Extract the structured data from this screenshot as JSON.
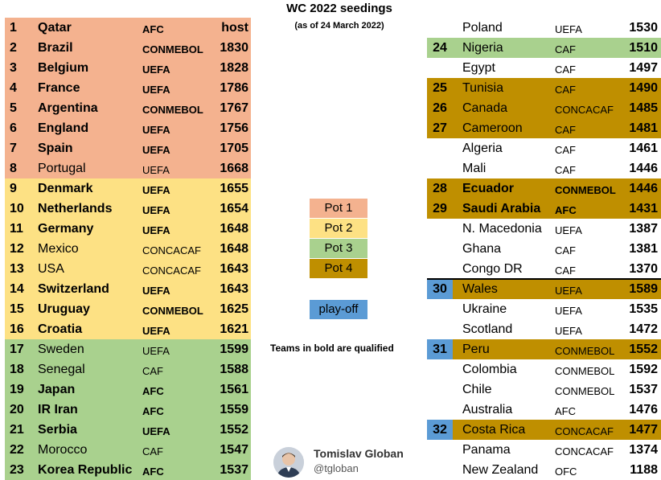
{
  "title": "WC 2022 seedings",
  "subtitle": "(as of 24 March 2022)",
  "colors": {
    "pot1": "#f4b28f",
    "pot2": "#fde184",
    "pot3": "#a9d18e",
    "pot4": "#bf8f00",
    "playoff": "#5b9bd5"
  },
  "left_table": [
    {
      "rank": "1",
      "team": "Qatar",
      "conf": "AFC",
      "elo": "host",
      "qualified": true,
      "pot": "pot1"
    },
    {
      "rank": "2",
      "team": "Brazil",
      "conf": "CONMEBOL",
      "elo": "1830",
      "qualified": true,
      "pot": "pot1"
    },
    {
      "rank": "3",
      "team": "Belgium",
      "conf": "UEFA",
      "elo": "1828",
      "qualified": true,
      "pot": "pot1"
    },
    {
      "rank": "4",
      "team": "France",
      "conf": "UEFA",
      "elo": "1786",
      "qualified": true,
      "pot": "pot1"
    },
    {
      "rank": "5",
      "team": "Argentina",
      "conf": "CONMEBOL",
      "elo": "1767",
      "qualified": true,
      "pot": "pot1"
    },
    {
      "rank": "6",
      "team": "England",
      "conf": "UEFA",
      "elo": "1756",
      "qualified": true,
      "pot": "pot1"
    },
    {
      "rank": "7",
      "team": "Spain",
      "conf": "UEFA",
      "elo": "1705",
      "qualified": true,
      "pot": "pot1"
    },
    {
      "rank": "8",
      "team": "Portugal",
      "conf": "UEFA",
      "elo": "1668",
      "qualified": false,
      "pot": "pot1"
    },
    {
      "rank": "9",
      "team": "Denmark",
      "conf": "UEFA",
      "elo": "1655",
      "qualified": true,
      "pot": "pot2"
    },
    {
      "rank": "10",
      "team": "Netherlands",
      "conf": "UEFA",
      "elo": "1654",
      "qualified": true,
      "pot": "pot2"
    },
    {
      "rank": "11",
      "team": "Germany",
      "conf": "UEFA",
      "elo": "1648",
      "qualified": true,
      "pot": "pot2"
    },
    {
      "rank": "12",
      "team": "Mexico",
      "conf": "CONCACAF",
      "elo": "1648",
      "qualified": false,
      "pot": "pot2"
    },
    {
      "rank": "13",
      "team": "USA",
      "conf": "CONCACAF",
      "elo": "1643",
      "qualified": false,
      "pot": "pot2"
    },
    {
      "rank": "14",
      "team": "Switzerland",
      "conf": "UEFA",
      "elo": "1643",
      "qualified": true,
      "pot": "pot2"
    },
    {
      "rank": "15",
      "team": "Uruguay",
      "conf": "CONMEBOL",
      "elo": "1625",
      "qualified": true,
      "pot": "pot2"
    },
    {
      "rank": "16",
      "team": "Croatia",
      "conf": "UEFA",
      "elo": "1621",
      "qualified": true,
      "pot": "pot2"
    },
    {
      "rank": "17",
      "team": "Sweden",
      "conf": "UEFA",
      "elo": "1599",
      "qualified": false,
      "pot": "pot3"
    },
    {
      "rank": "18",
      "team": "Senegal",
      "conf": "CAF",
      "elo": "1588",
      "qualified": false,
      "pot": "pot3"
    },
    {
      "rank": "19",
      "team": "Japan",
      "conf": "AFC",
      "elo": "1561",
      "qualified": true,
      "pot": "pot3"
    },
    {
      "rank": "20",
      "team": "IR Iran",
      "conf": "AFC",
      "elo": "1559",
      "qualified": true,
      "pot": "pot3"
    },
    {
      "rank": "21",
      "team": "Serbia",
      "conf": "UEFA",
      "elo": "1552",
      "qualified": true,
      "pot": "pot3"
    },
    {
      "rank": "22",
      "team": "Morocco",
      "conf": "CAF",
      "elo": "1547",
      "qualified": false,
      "pot": "pot3"
    },
    {
      "rank": "23",
      "team": "Korea Republic",
      "conf": "AFC",
      "elo": "1537",
      "qualified": true,
      "pot": "pot3"
    }
  ],
  "right_table": [
    {
      "rank": "",
      "team": "Poland",
      "conf": "UEFA",
      "elo": "1530",
      "qualified": false,
      "pot": ""
    },
    {
      "rank": "24",
      "team": "Nigeria",
      "conf": "CAF",
      "elo": "1510",
      "qualified": false,
      "pot": "pot3"
    },
    {
      "rank": "",
      "team": "Egypt",
      "conf": "CAF",
      "elo": "1497",
      "qualified": false,
      "pot": ""
    },
    {
      "rank": "25",
      "team": "Tunisia",
      "conf": "CAF",
      "elo": "1490",
      "qualified": false,
      "pot": "pot4"
    },
    {
      "rank": "26",
      "team": "Canada",
      "conf": "CONCACAF",
      "elo": "1485",
      "qualified": false,
      "pot": "pot4"
    },
    {
      "rank": "27",
      "team": "Cameroon",
      "conf": "CAF",
      "elo": "1481",
      "qualified": false,
      "pot": "pot4"
    },
    {
      "rank": "",
      "team": "Algeria",
      "conf": "CAF",
      "elo": "1461",
      "qualified": false,
      "pot": ""
    },
    {
      "rank": "",
      "team": "Mali",
      "conf": "CAF",
      "elo": "1446",
      "qualified": false,
      "pot": ""
    },
    {
      "rank": "28",
      "team": "Ecuador",
      "conf": "CONMEBOL",
      "elo": "1446",
      "qualified": true,
      "pot": "pot4"
    },
    {
      "rank": "29",
      "team": "Saudi Arabia",
      "conf": "AFC",
      "elo": "1431",
      "qualified": true,
      "pot": "pot4"
    },
    {
      "rank": "",
      "team": "N. Macedonia",
      "conf": "UEFA",
      "elo": "1387",
      "qualified": false,
      "pot": ""
    },
    {
      "rank": "",
      "team": "Ghana",
      "conf": "CAF",
      "elo": "1381",
      "qualified": false,
      "pot": ""
    },
    {
      "rank": "",
      "team": "Congo DR",
      "conf": "CAF",
      "elo": "1370",
      "qualified": false,
      "pot": ""
    },
    {
      "rank": "30",
      "team": "Wales",
      "conf": "UEFA",
      "elo": "1589",
      "qualified": false,
      "pot": "pot4",
      "rank_style": "playoff"
    },
    {
      "rank": "",
      "team": "Ukraine",
      "conf": "UEFA",
      "elo": "1535",
      "qualified": false,
      "pot": ""
    },
    {
      "rank": "",
      "team": "Scotland",
      "conf": "UEFA",
      "elo": "1472",
      "qualified": false,
      "pot": ""
    },
    {
      "rank": "31",
      "team": "Peru",
      "conf": "CONMEBOL",
      "elo": "1552",
      "qualified": false,
      "pot": "pot4",
      "rank_style": "playoff"
    },
    {
      "rank": "",
      "team": "Colombia",
      "conf": "CONMEBOL",
      "elo": "1592",
      "qualified": false,
      "pot": ""
    },
    {
      "rank": "",
      "team": "Chile",
      "conf": "CONMEBOL",
      "elo": "1537",
      "qualified": false,
      "pot": ""
    },
    {
      "rank": "",
      "team": "Australia",
      "conf": "AFC",
      "elo": "1476",
      "qualified": false,
      "pot": ""
    },
    {
      "rank": "32",
      "team": "Costa Rica",
      "conf": "CONCACAF",
      "elo": "1477",
      "qualified": false,
      "pot": "pot4",
      "rank_style": "playoff"
    },
    {
      "rank": "",
      "team": "Panama",
      "conf": "CONCACAF",
      "elo": "1374",
      "qualified": false,
      "pot": ""
    },
    {
      "rank": "",
      "team": "New Zealand",
      "conf": "OFC",
      "elo": "1188",
      "qualified": false,
      "pot": ""
    }
  ],
  "legend": [
    {
      "label": "Pot 1",
      "color": "#f4b28f"
    },
    {
      "label": "Pot 2",
      "color": "#fde184"
    },
    {
      "label": "Pot 3",
      "color": "#a9d18e"
    },
    {
      "label": "Pot 4",
      "color": "#bf8f00"
    }
  ],
  "playoff_legend": {
    "label": "play-off",
    "color": "#5b9bd5"
  },
  "note": "Teams in bold are qualified",
  "author": {
    "name": "Tomislav Globan",
    "handle": "@tgloban"
  }
}
